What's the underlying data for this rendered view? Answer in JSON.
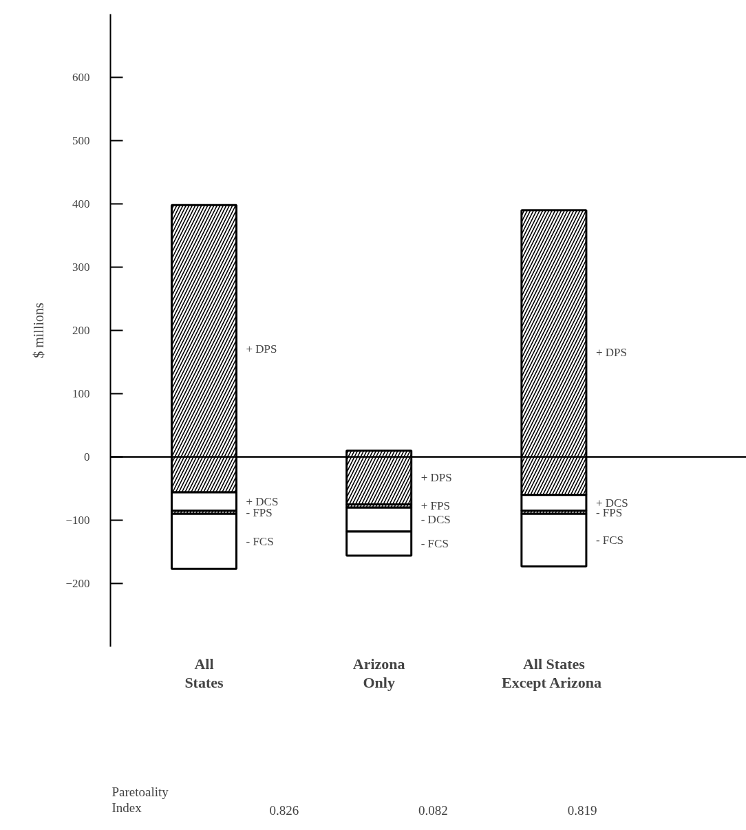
{
  "chart_data": {
    "type": "bar",
    "ylabel": "$ millions",
    "categories": [
      "All\nStates",
      "Arizona\nOnly",
      "All States\nExcept  Arizona"
    ],
    "series": [
      {
        "color": "#000000",
        "base": [
          -56,
          -75,
          -60
        ],
        "values": [
          454,
          85,
          450
        ]
      },
      {
        "color": "#ffffff",
        "base": [
          -85,
          -118,
          -85
        ],
        "values": [
          29,
          38,
          25
        ]
      },
      {
        "color": "#000000",
        "base": [
          -90,
          -80,
          -90
        ],
        "values": [
          5,
          5,
          5
        ]
      },
      {
        "color": "#ffffff",
        "base": [
          -177,
          -156,
          -173
        ],
        "values": [
          87,
          38,
          83
        ]
      }
    ],
    "ylim": [
      -300,
      700
    ],
    "yticks": [
      -200,
      -100,
      0,
      100,
      200,
      300,
      400,
      500,
      600
    ],
    "ref_lines": [
      {
        "axis": "y",
        "value": 0
      }
    ],
    "annotations": [
      "+ DPS",
      "+ DCS",
      "- FPS",
      "- FCS",
      "+ DPS",
      "+ FPS",
      "- DCS",
      "- FCS",
      "+ DPS",
      "+ DCS",
      "- FPS",
      "- FCS",
      "Paretoality\n Index",
      "0.826",
      "0.082",
      "0.819"
    ]
  }
}
